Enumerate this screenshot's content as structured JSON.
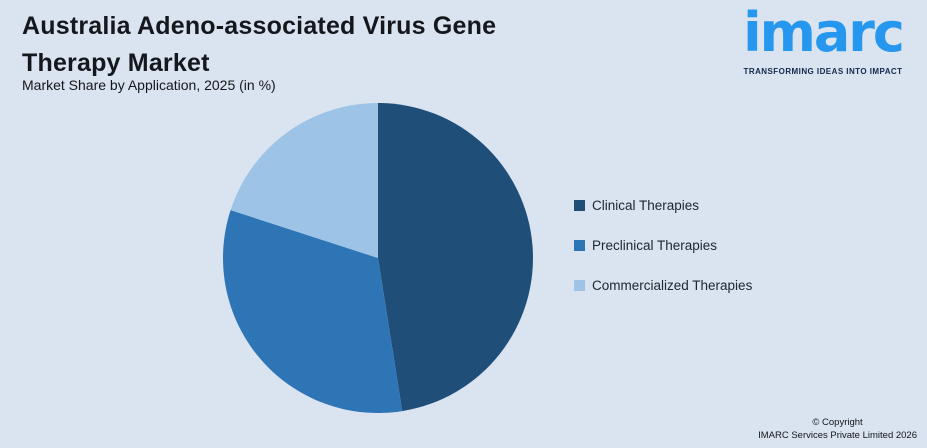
{
  "page": {
    "background": "#dae3f0"
  },
  "header": {
    "title": "Australia Adeno-associated Virus Gene Therapy Market",
    "subtitle": "Market Share by Application, 2025 (in %)"
  },
  "logo": {
    "wordmark": "imarc",
    "tagline": "TRANSFORMING IDEAS INTO IMPACT",
    "wordmark_color": "#2697ef",
    "tagline_color": "#13294e"
  },
  "chart_data": {
    "type": "pie",
    "title": "Australia Adeno-associated Virus Gene Therapy Market",
    "subtitle": "Market Share by Application, 2025 (in %)",
    "unit": "%",
    "categories": [
      "Clinical Therapies",
      "Preclinical Therapies",
      "Commercialized Therapies"
    ],
    "values": [
      47.5,
      32.5,
      20.0
    ],
    "colors": [
      "#1f4e79",
      "#2e75b6",
      "#9dc3e6"
    ],
    "start_angle_deg": 0,
    "direction": "clockwise",
    "legend_position": "right",
    "data_labels_shown": false
  },
  "legend": {
    "items": [
      {
        "label": "Clinical Therapies",
        "color": "#1f4e79"
      },
      {
        "label": "Preclinical Therapies",
        "color": "#2e75b6"
      },
      {
        "label": "Commercialized Therapies",
        "color": "#9dc3e6"
      }
    ]
  },
  "footer": {
    "copyright_line1": "© Copyright",
    "copyright_line2": "IMARC Services Private Limited 2026"
  }
}
